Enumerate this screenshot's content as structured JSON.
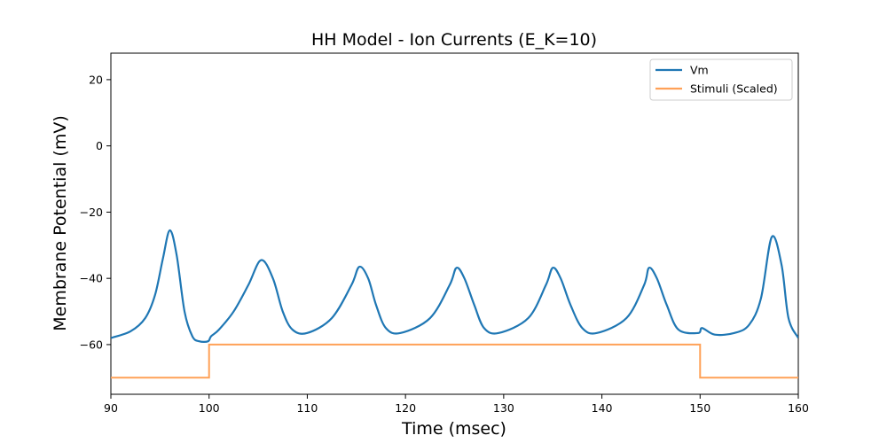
{
  "chart_data": {
    "type": "line",
    "title": "HH Model - Ion Currents (E_K=10)",
    "xlabel": "Time (msec)",
    "ylabel": "Membrane Potential (mV)",
    "xlim": [
      90,
      160
    ],
    "ylim": [
      -75,
      28
    ],
    "xticks": [
      90,
      100,
      110,
      120,
      130,
      140,
      150,
      160
    ],
    "yticks": [
      -60,
      -40,
      -20,
      0,
      20
    ],
    "grid": false,
    "legend_position": "top-right",
    "series": [
      {
        "name": "Vm",
        "color": "#1f77b4",
        "x": [
          90,
          92,
          93.5,
          94.5,
          95.3,
          96.0,
          96.7,
          97.5,
          98.3,
          99.0,
          99.9,
          100.2,
          101.0,
          102.5,
          104.0,
          105.3,
          106.5,
          107.5,
          108.5,
          110.0,
          112.5,
          114.5,
          115.3,
          116.2,
          117.0,
          118.0,
          119.5,
          122.5,
          124.5,
          125.2,
          126.0,
          127.0,
          128.0,
          129.5,
          132.5,
          134.3,
          135.0,
          135.8,
          136.8,
          138.0,
          139.5,
          142.5,
          144.3,
          144.8,
          145.6,
          146.6,
          147.8,
          149.8,
          150.2,
          151.5,
          153.5,
          155.0,
          156.2,
          157.3,
          158.3,
          159.0,
          160
        ],
        "y": [
          -58,
          -56,
          -52,
          -45,
          -34,
          -25.5,
          -33,
          -50,
          -57.5,
          -59,
          -59,
          -57.5,
          -55.5,
          -50,
          -42,
          -34.5,
          -40,
          -50,
          -55.5,
          -56.5,
          -52,
          -42,
          -36.5,
          -40,
          -48,
          -55,
          -56.5,
          -52,
          -42,
          -36.8,
          -40,
          -48,
          -55,
          -56.5,
          -52,
          -42,
          -36.8,
          -40,
          -48,
          -55,
          -56.5,
          -52,
          -42,
          -36.8,
          -40,
          -48,
          -55.5,
          -56.5,
          -55,
          -57,
          -56.5,
          -54,
          -46,
          -27.5,
          -36,
          -52,
          -58
        ]
      },
      {
        "name": "Stimuli (Scaled)",
        "color": "#ffa157",
        "x": [
          90,
          100,
          100,
          150,
          150,
          160
        ],
        "y": [
          -70,
          -70,
          -60,
          -60,
          -70,
          -70
        ]
      }
    ]
  }
}
